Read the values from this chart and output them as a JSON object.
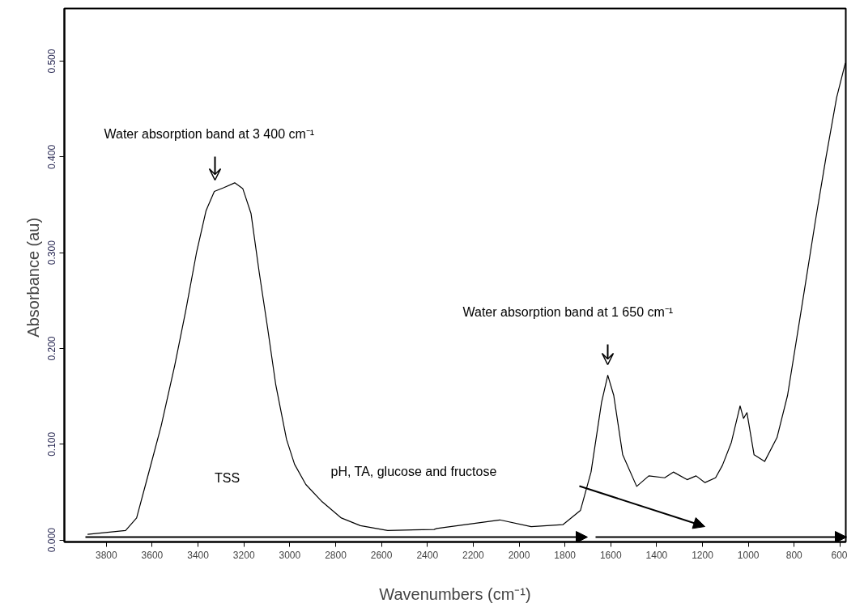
{
  "chart_data": {
    "type": "line",
    "xlabel": "Wavenumbers (cm⁻¹)",
    "ylabel": "Absorbance  (au)",
    "x": [
      3882,
      3716,
      3668,
      3621,
      3561,
      3502,
      3454,
      3406,
      3365,
      3329,
      3287,
      3240,
      3205,
      3169,
      3133,
      3097,
      3061,
      3014,
      2979,
      2930,
      2859,
      2775,
      2692,
      2573,
      2371,
      2359,
      2176,
      2084,
      1947,
      1809,
      1732,
      1686,
      1640,
      1613,
      1587,
      1548,
      1487,
      1434,
      1365,
      1327,
      1267,
      1228,
      1189,
      1143,
      1113,
      1074,
      1036,
      1021,
      1006,
      975,
      929,
      875,
      829,
      768,
      707,
      661,
      615,
      577
    ],
    "series": [
      {
        "color": "#000000",
        "values": [
          0.006,
          0.01,
          0.023,
          0.065,
          0.119,
          0.182,
          0.239,
          0.301,
          0.344,
          0.364,
          0.368,
          0.373,
          0.367,
          0.341,
          0.279,
          0.222,
          0.162,
          0.105,
          0.079,
          0.058,
          0.04,
          0.023,
          0.015,
          0.01,
          0.011,
          0.012,
          0.018,
          0.021,
          0.014,
          0.016,
          0.031,
          0.071,
          0.144,
          0.172,
          0.151,
          0.089,
          0.056,
          0.067,
          0.065,
          0.071,
          0.063,
          0.067,
          0.06,
          0.065,
          0.078,
          0.102,
          0.14,
          0.127,
          0.133,
          0.089,
          0.082,
          0.107,
          0.151,
          0.242,
          0.334,
          0.4,
          0.462,
          0.498
        ]
      }
    ],
    "xlim": [
      3983,
      575
    ],
    "ylim": [
      -0.002,
      0.555
    ],
    "xticks": [
      3800,
      3600,
      3400,
      3200,
      3000,
      2800,
      2600,
      2400,
      2200,
      2000,
      1800,
      1600,
      1400,
      1200,
      1000,
      800,
      600
    ],
    "yticks": [
      {
        "value": 0,
        "label": "0.000"
      },
      {
        "value": 0.1,
        "label": "0.100"
      },
      {
        "value": 0.2,
        "label": "0.200"
      },
      {
        "value": 0.3,
        "label": "0.300"
      },
      {
        "value": 0.4,
        "label": "0.400"
      },
      {
        "value": 0.5,
        "label": "0.500"
      }
    ],
    "annotations": [
      "Water absorption band at 3 400 cm⁻¹",
      "Water absorption band at 1 650 cm⁻¹",
      "TSS",
      "pH, TA, glucose and fructose"
    ],
    "grid": false,
    "marker": "none",
    "line_style": "solid"
  }
}
